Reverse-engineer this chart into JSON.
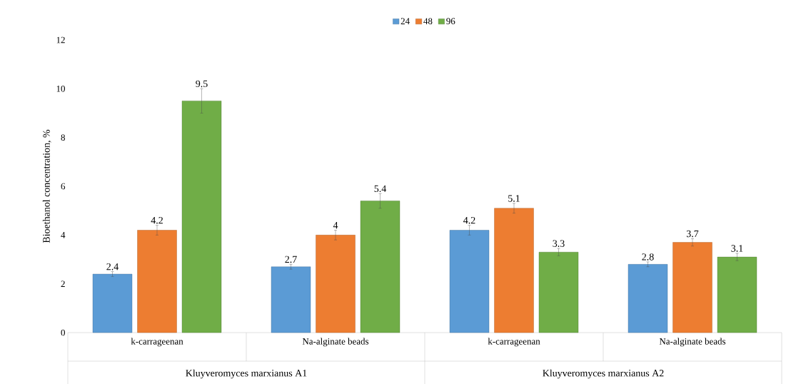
{
  "chart_data": {
    "type": "bar",
    "categories": [
      "k-carrageenan",
      "Na-alginate beads",
      "k-carrageenan",
      "Na-alginate beads"
    ],
    "series": [
      {
        "name": "24",
        "color": "#5b9bd5",
        "values": [
          2.4,
          2.7,
          4.2,
          2.8
        ],
        "errors": [
          0.1,
          0.1,
          0.2,
          0.1
        ]
      },
      {
        "name": "48",
        "color": "#ed7d31",
        "values": [
          4.2,
          4,
          5.1,
          3.7
        ],
        "errors": [
          0.2,
          0.2,
          0.2,
          0.15
        ]
      },
      {
        "name": "96",
        "color": "#70ad47",
        "values": [
          9.5,
          5.4,
          3.3,
          3.1
        ],
        "errors": [
          0.5,
          0.3,
          0.15,
          0.15
        ]
      }
    ],
    "ylabel": "Bioethanol concentration, %",
    "annotations": [
      "Kluyveromyces marxianus A1",
      "Kluyveromyces marxianus A2"
    ],
    "ylim": [
      0,
      12
    ],
    "yticks": [
      0,
      2,
      4,
      6,
      8,
      10,
      12
    ],
    "data_labels": true,
    "legend": "top",
    "grid": false
  }
}
